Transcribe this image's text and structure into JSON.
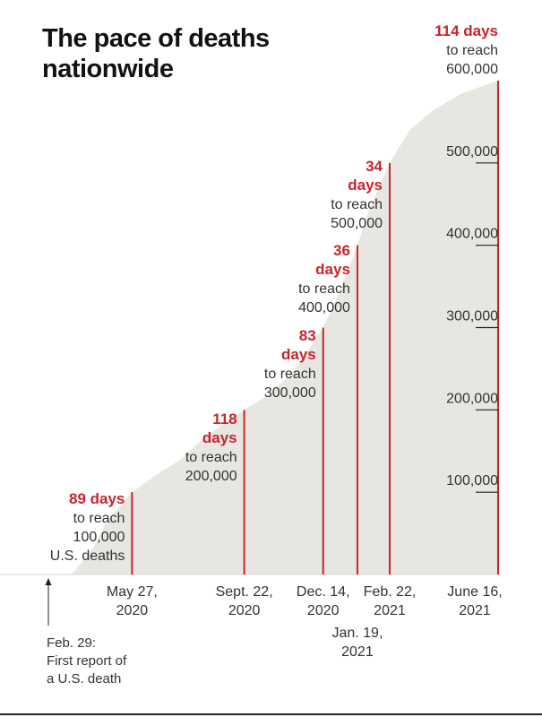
{
  "chart_data": {
    "type": "area",
    "title_lines": [
      "The pace of deaths",
      "nationwide"
    ],
    "y_ticks": [
      100000,
      200000,
      300000,
      400000,
      500000
    ],
    "y_tick_labels": [
      "100,000",
      "200,000",
      "300,000",
      "400,000",
      "500,000"
    ],
    "ylim": [
      0,
      600000
    ],
    "xlim": [
      "2020-02-29",
      "2021-06-16"
    ],
    "grid": false,
    "area_series": {
      "x": [
        "2020-02-29",
        "2020-03-25",
        "2020-04-15",
        "2020-05-01",
        "2020-05-27",
        "2020-06-20",
        "2020-07-15",
        "2020-08-10",
        "2020-09-01",
        "2020-09-22",
        "2020-10-20",
        "2020-11-15",
        "2020-12-14",
        "2021-01-01",
        "2021-01-19",
        "2021-02-01",
        "2021-02-22",
        "2021-03-15",
        "2021-04-10",
        "2021-05-10",
        "2021-06-16"
      ],
      "values": [
        0,
        1000,
        30000,
        65000,
        100000,
        120000,
        138000,
        165000,
        184000,
        200000,
        220000,
        250000,
        300000,
        345000,
        400000,
        445000,
        500000,
        540000,
        565000,
        585000,
        600000
      ]
    },
    "milestones": [
      {
        "date": "2020-05-27",
        "value": 100000,
        "days_lines": [
          "89 days"
        ],
        "text_lines": [
          "to reach",
          "100,000",
          "U.S. deaths"
        ],
        "date_lines": [
          "May 27,",
          "2020"
        ]
      },
      {
        "date": "2020-09-22",
        "value": 200000,
        "days_lines": [
          "118",
          "days"
        ],
        "text_lines": [
          "to reach",
          "200,000"
        ],
        "date_lines": [
          "Sept. 22,",
          "2020"
        ]
      },
      {
        "date": "2020-12-14",
        "value": 300000,
        "days_lines": [
          "83",
          "days"
        ],
        "text_lines": [
          "to reach",
          "300,000"
        ],
        "date_lines": [
          "Dec. 14,",
          "2020"
        ]
      },
      {
        "date": "2021-01-19",
        "value": 400000,
        "days_lines": [
          "36",
          "days"
        ],
        "text_lines": [
          "to reach",
          "400,000"
        ],
        "date_lines": [
          "Jan. 19,",
          "2021"
        ]
      },
      {
        "date": "2021-02-22",
        "value": 500000,
        "days_lines": [
          "34",
          "days"
        ],
        "text_lines": [
          "to reach",
          "500,000"
        ],
        "date_lines": [
          "Feb. 22,",
          "2021"
        ]
      },
      {
        "date": "2021-06-16",
        "value": 600000,
        "days_lines": [
          "114 days"
        ],
        "text_lines": [
          "to reach",
          "600,000"
        ],
        "date_lines": [
          "June 16,",
          "2021"
        ]
      }
    ],
    "start_note": {
      "date": "2020-02-29",
      "lines": [
        "Feb. 29:",
        "First report of",
        "a U.S. death"
      ]
    },
    "colors": {
      "area": "#e8e6e1",
      "milestone": "#c8242b",
      "text": "#333333",
      "axis": "#222222"
    }
  }
}
